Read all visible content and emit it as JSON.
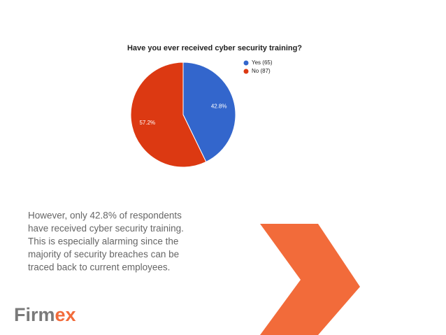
{
  "chart_data": {
    "type": "pie",
    "title": "Have you ever received cyber security training?",
    "categories": [
      "Yes (65)",
      "No (87)"
    ],
    "values": [
      42.8,
      57.2
    ],
    "value_labels": [
      "42.8%",
      "57.2%"
    ],
    "colors": [
      "#3366cc",
      "#dc3912"
    ],
    "legend": "right"
  },
  "body_lines": [
    "However, only 42.8% of respondents",
    "have received cyber security training.",
    "This is especially alarming since the",
    "majority of security breaches can be",
    "traced back to current employees."
  ],
  "logo": {
    "main": "Firm",
    "accent": "ex"
  }
}
